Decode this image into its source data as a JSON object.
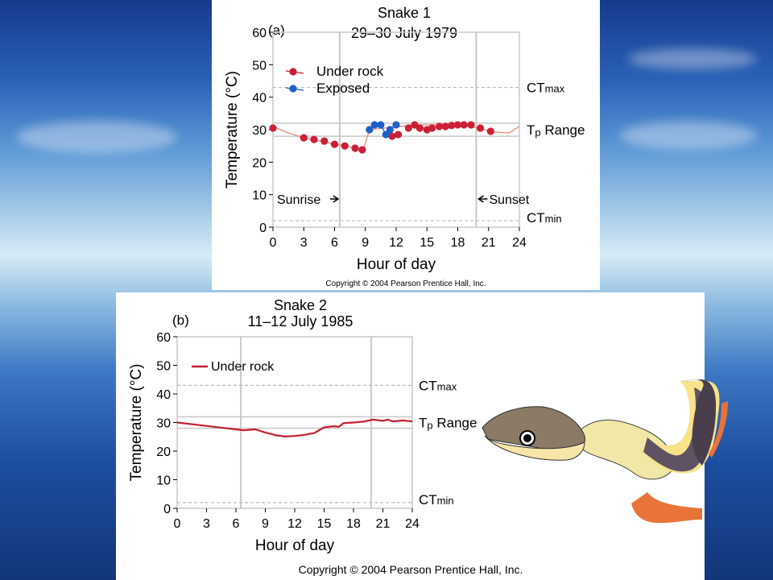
{
  "chart_data": [
    {
      "type": "line",
      "panel_label": "(a)",
      "title_line1": "Snake 1",
      "title_line2": "29–30 July 1979",
      "xlabel": "Hour of day",
      "ylabel": "Temperature (°C)",
      "xlim": [
        0,
        24
      ],
      "ylim": [
        0,
        60
      ],
      "x_ticks": [
        0,
        3,
        6,
        9,
        12,
        15,
        18,
        21,
        24
      ],
      "y_ticks": [
        0,
        10,
        20,
        30,
        40,
        50,
        60
      ],
      "grid": false,
      "legend_position": "top-left",
      "ct_max": 43,
      "ct_min": 2,
      "tp_range": [
        28,
        32
      ],
      "sunrise_hour": 6.5,
      "sunset_hour": 19.8,
      "ref_labels": {
        "ct_max_main": "CT",
        "ct_max_sub": "max",
        "ct_min_main": "CT",
        "ct_min_sub": "min",
        "tp_main": "T",
        "tp_sub": "p",
        "tp_rest": " Range"
      },
      "annotations": {
        "sunrise": "Sunrise",
        "sunset": "Sunset"
      },
      "copyright": "Copyright © 2004 Pearson Prentice Hall, Inc.",
      "series": [
        {
          "name": "Under rock",
          "color": "#cc1f36",
          "points": [
            [
              0,
              30.5
            ],
            [
              3,
              27.5
            ],
            [
              4,
              27
            ],
            [
              5,
              26.5
            ],
            [
              6,
              25.5
            ],
            [
              7,
              25
            ],
            [
              8,
              24.3
            ],
            [
              8.7,
              23.8
            ],
            [
              11.6,
              28
            ],
            [
              12.2,
              28.5
            ],
            [
              13.2,
              30.5
            ],
            [
              13.8,
              31.5
            ],
            [
              14.3,
              30.5
            ],
            [
              15,
              30
            ],
            [
              15.5,
              30.5
            ],
            [
              16.2,
              31
            ],
            [
              16.8,
              31
            ],
            [
              17.4,
              31.3
            ],
            [
              18,
              31.5
            ],
            [
              18.6,
              31.5
            ],
            [
              19.3,
              31.5
            ],
            [
              20.2,
              30.5
            ],
            [
              21.2,
              29.5
            ]
          ]
        },
        {
          "name": "Exposed",
          "color": "#1f5fc8",
          "points": [
            [
              9.4,
              30
            ],
            [
              9.9,
              31.5
            ],
            [
              10.5,
              31.5
            ],
            [
              11,
              28.5
            ],
            [
              11.4,
              30
            ],
            [
              12,
              31.5
            ]
          ]
        }
      ],
      "trend_line": {
        "color": "#ee8877",
        "points": [
          [
            0,
            31
          ],
          [
            1.5,
            29
          ],
          [
            3,
            27.5
          ],
          [
            6,
            25.6
          ],
          [
            8.8,
            23.8
          ],
          [
            9.4,
            30
          ],
          [
            13.8,
            31.5
          ],
          [
            18,
            31.5
          ],
          [
            20,
            30.5
          ],
          [
            21.5,
            29.3
          ],
          [
            23,
            29
          ],
          [
            24,
            31
          ]
        ]
      }
    },
    {
      "type": "line",
      "panel_label": "(b)",
      "title_line1": "Snake 2",
      "title_line2": "11–12 July 1985",
      "xlabel": "Hour of day",
      "ylabel": "Temperature (°C)",
      "xlim": [
        0,
        24
      ],
      "ylim": [
        0,
        60
      ],
      "x_ticks": [
        0,
        3,
        6,
        9,
        12,
        15,
        18,
        21,
        24
      ],
      "y_ticks": [
        0,
        10,
        20,
        30,
        40,
        50,
        60
      ],
      "grid": false,
      "legend_position": "top-left",
      "ct_max": 43,
      "ct_min": 2,
      "tp_range": [
        28,
        32
      ],
      "sunrise_hour": 6.5,
      "sunset_hour": 19.8,
      "ref_labels": {
        "ct_max_main": "CT",
        "ct_max_sub": "max",
        "ct_min_main": "CT",
        "ct_min_sub": "min",
        "tp_main": "T",
        "tp_sub": "p",
        "tp_rest": " Range"
      },
      "copyright": "Copyright © 2004 Pearson Prentice Hall, Inc.",
      "series": [
        {
          "name": "Under rock",
          "color": "#c41e30",
          "points": [
            [
              0,
              30
            ],
            [
              2,
              29.2
            ],
            [
              4,
              28.4
            ],
            [
              6,
              27.6
            ],
            [
              6.8,
              27.3
            ],
            [
              8,
              27.6
            ],
            [
              9,
              26.5
            ],
            [
              10,
              25.6
            ],
            [
              11,
              25.1
            ],
            [
              12,
              25.3
            ],
            [
              13,
              25.7
            ],
            [
              14,
              26.3
            ],
            [
              15,
              28.3
            ],
            [
              16,
              28.7
            ],
            [
              16.5,
              28.5
            ],
            [
              17,
              29.8
            ],
            [
              18,
              30
            ],
            [
              19,
              30.3
            ],
            [
              20,
              31
            ],
            [
              21,
              30.6
            ],
            [
              21.5,
              31
            ],
            [
              22,
              30.4
            ],
            [
              23,
              30.7
            ],
            [
              24,
              30.4
            ]
          ]
        }
      ]
    }
  ],
  "colors": {
    "grid_gray": "#c9c9c9",
    "ref_dash": "#bbbbbb",
    "tp_line": "#c7c7c7"
  }
}
